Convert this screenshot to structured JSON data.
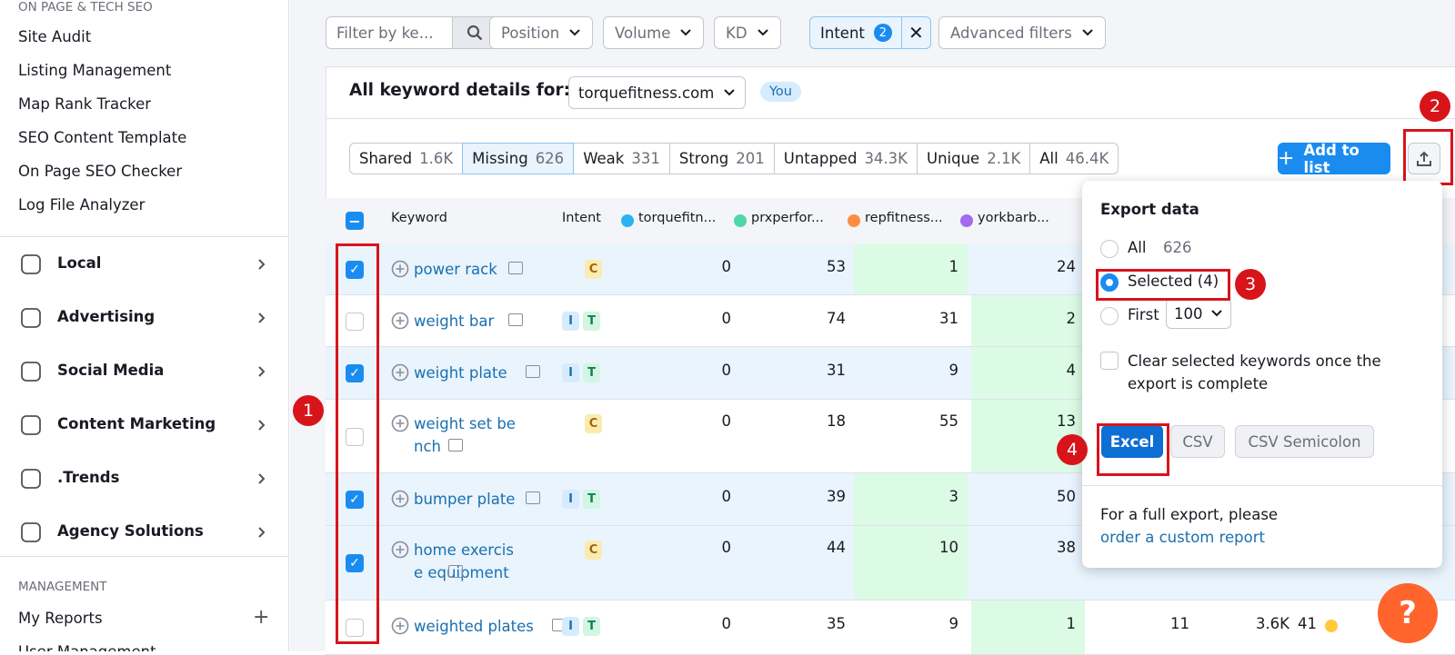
{
  "sidebar": {
    "section_title": "ON PAGE & TECH SEO",
    "items": [
      "Site Audit",
      "Listing Management",
      "Map Rank Tracker",
      "SEO Content Template",
      "On Page SEO Checker",
      "Log File Analyzer"
    ],
    "groups": [
      "Local",
      "Advertising",
      "Social Media",
      "Content Marketing",
      ".Trends",
      "Agency Solutions"
    ],
    "management_title": "MANAGEMENT",
    "management_items": [
      "My Reports",
      "User Management"
    ]
  },
  "filters": {
    "search_placeholder": "Filter by ke...",
    "dropdowns": [
      "Position",
      "Volume",
      "KD"
    ],
    "intent": {
      "label": "Intent",
      "count": 2
    },
    "advanced": "Advanced filters"
  },
  "header": {
    "title": "All keyword details for:",
    "domain": "torquefitness.com",
    "badge": "You"
  },
  "tabs": [
    {
      "label": "Shared",
      "count": "1.6K"
    },
    {
      "label": "Missing",
      "count": 626,
      "active": true
    },
    {
      "label": "Weak",
      "count": 331
    },
    {
      "label": "Strong",
      "count": 201
    },
    {
      "label": "Untapped",
      "count": "34.3K"
    },
    {
      "label": "Unique",
      "count": "2.1K"
    },
    {
      "label": "All",
      "count": "46.4K"
    }
  ],
  "add_to_list": "Add to list",
  "table": {
    "columns": [
      "Keyword",
      "Intent"
    ],
    "domains": [
      {
        "name": "torquefitn...",
        "color": "#2bb3f0"
      },
      {
        "name": "prxperfor...",
        "color": "#4fd6a7"
      },
      {
        "name": "repfitness...",
        "color": "#ff8c42"
      },
      {
        "name": "yorkbarb...",
        "color": "#a26bf0"
      }
    ],
    "rows": [
      {
        "keyword": "power rack",
        "intents": [
          "C"
        ],
        "selected": true,
        "values": [
          0,
          53,
          1,
          24
        ]
      },
      {
        "keyword": "weight bar",
        "intents": [
          "I",
          "T"
        ],
        "selected": false,
        "values": [
          0,
          74,
          31,
          2
        ]
      },
      {
        "keyword": "weight plate",
        "intents": [
          "I",
          "T"
        ],
        "selected": true,
        "values": [
          0,
          31,
          9,
          4
        ]
      },
      {
        "keyword": "weight set bench",
        "intents": [
          "C"
        ],
        "selected": false,
        "values": [
          0,
          18,
          55,
          13
        ]
      },
      {
        "keyword": "bumper plate",
        "intents": [
          "I",
          "T"
        ],
        "selected": true,
        "values": [
          0,
          39,
          3,
          50
        ]
      },
      {
        "keyword": "home exercise equipment",
        "intents": [
          "C"
        ],
        "selected": true,
        "values": [
          0,
          44,
          10,
          38
        ]
      },
      {
        "keyword": "weighted plates",
        "intents": [
          "I",
          "T"
        ],
        "selected": false,
        "values": [
          0,
          35,
          9,
          1
        ],
        "extra": [
          11,
          "3.6K",
          41
        ]
      }
    ]
  },
  "export": {
    "title": "Export data",
    "options": [
      {
        "label": "All",
        "count": 626
      },
      {
        "label": "Selected (4)",
        "checked": true
      },
      {
        "label": "First",
        "select": 100
      }
    ],
    "clear_label": "Clear selected keywords once the export is complete",
    "buttons": [
      "Excel",
      "CSV",
      "CSV Semicolon"
    ],
    "footer": "For a full export, please",
    "link": "order a custom report"
  },
  "annotations": [
    "1",
    "2",
    "3",
    "4"
  ],
  "help": "?"
}
